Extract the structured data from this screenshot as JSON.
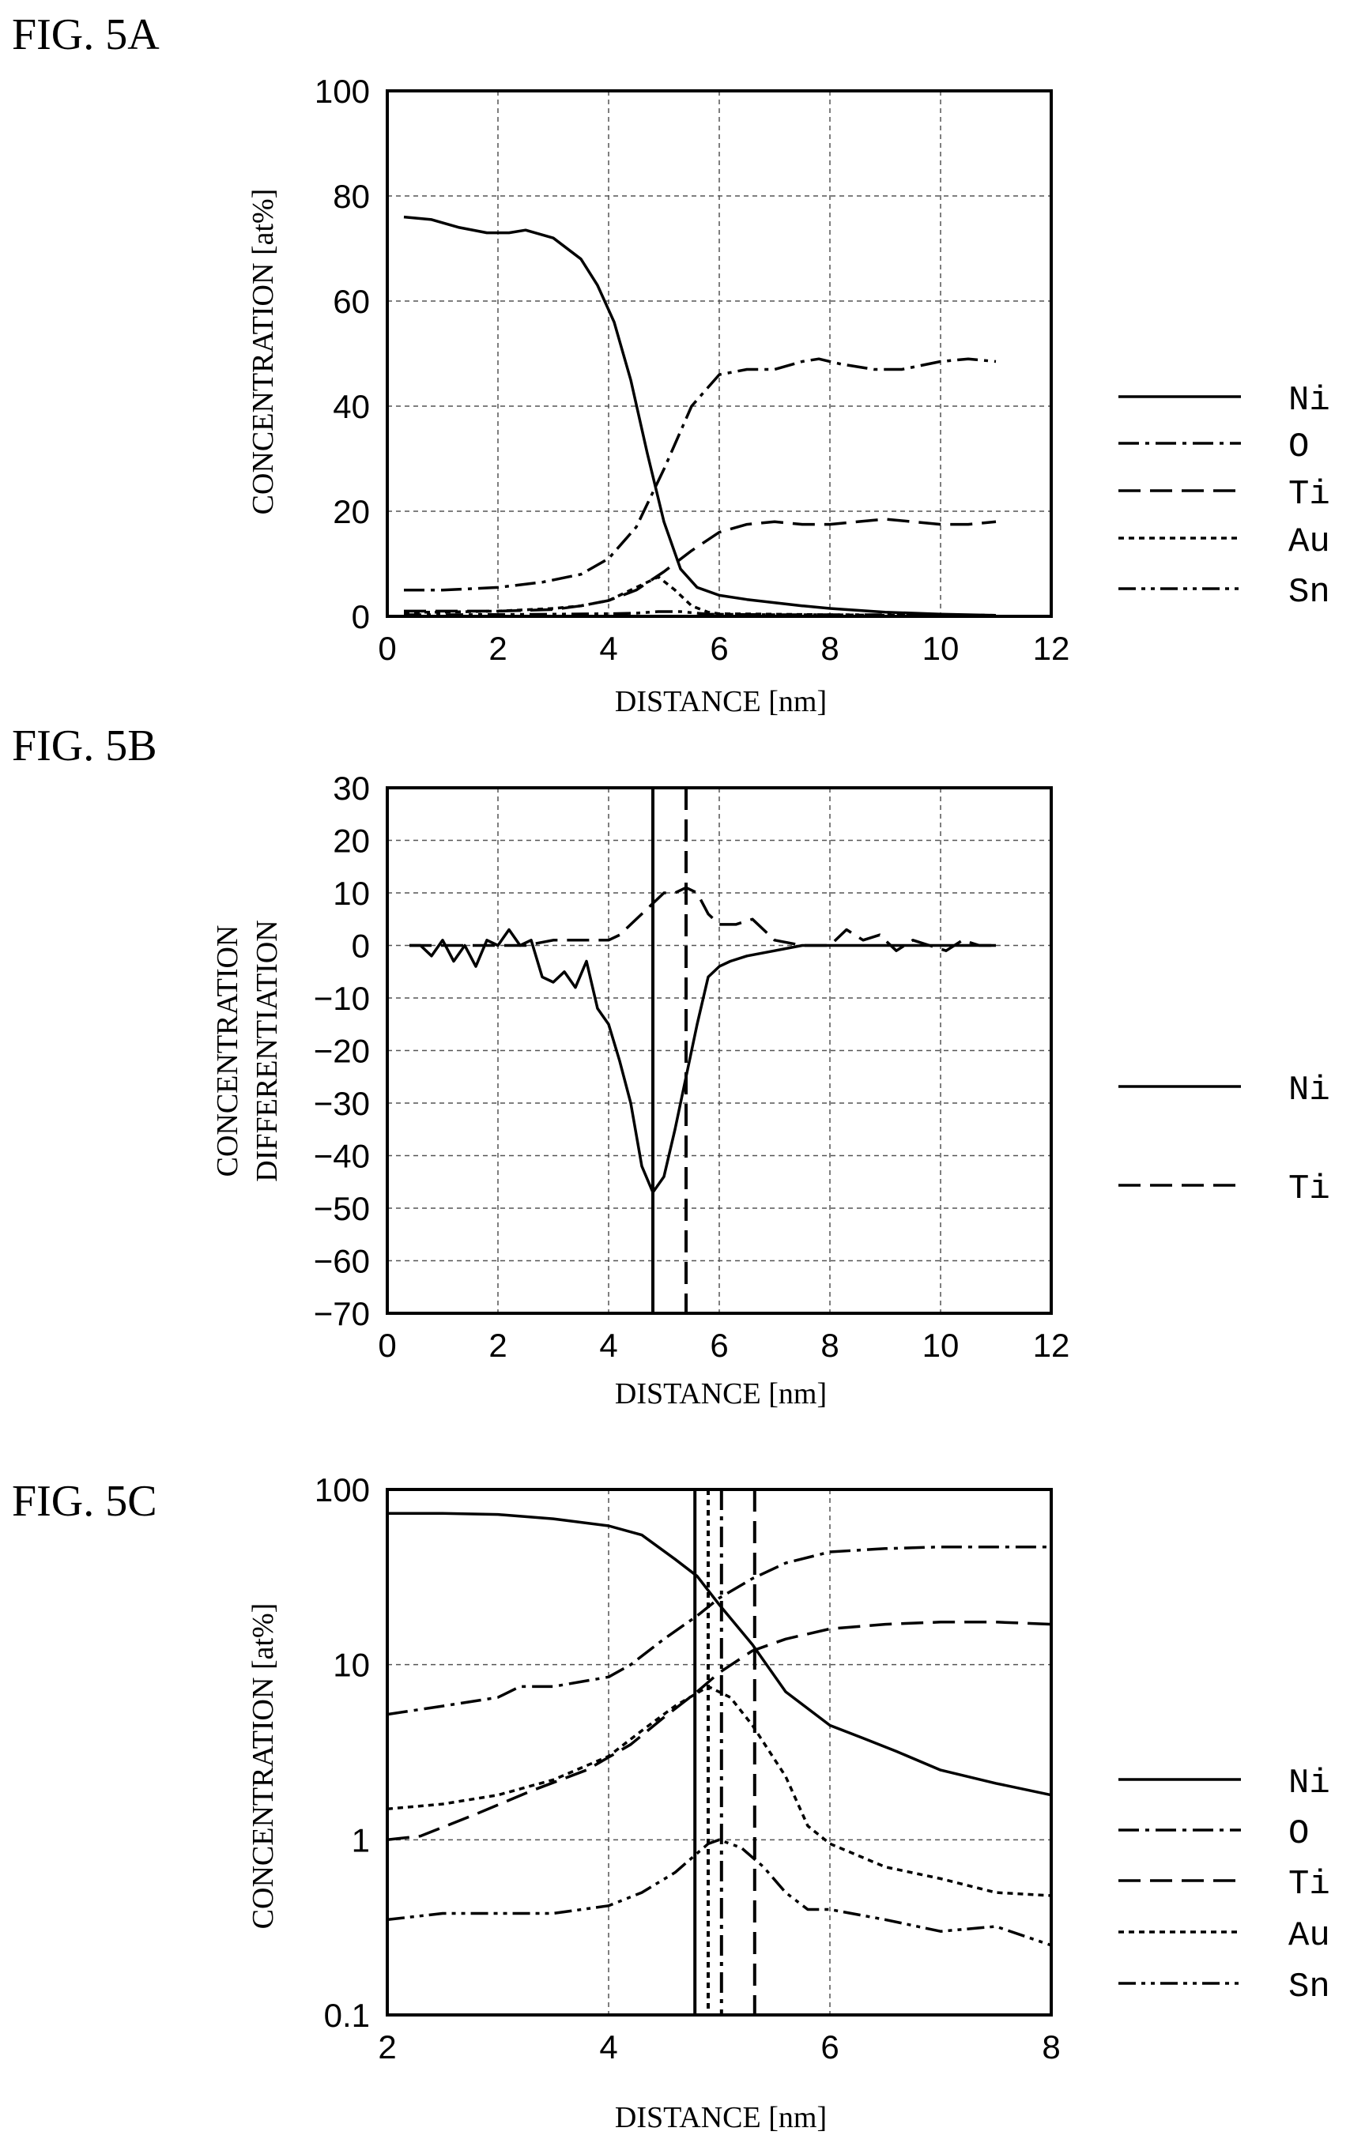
{
  "chart_data": [
    {
      "panel": "FIG. 5A",
      "type": "line",
      "title": "",
      "xlabel": "DISTANCE [nm]",
      "ylabel": "CONCENTRATION [at%]",
      "xlim": [
        0,
        12
      ],
      "ylim": [
        0,
        100
      ],
      "x_scale": "linear",
      "y_scale": "linear",
      "x_ticks": [
        "0",
        "2",
        "4",
        "6",
        "8",
        "10",
        "12"
      ],
      "y_ticks": [
        "0",
        "20",
        "40",
        "60",
        "80",
        "100"
      ],
      "grid": "dashed",
      "legend_position": "right",
      "series": [
        {
          "name": "Ni",
          "style": "solid",
          "x": [
            0.3,
            0.8,
            1.3,
            1.8,
            2.2,
            2.5,
            3.0,
            3.5,
            3.8,
            4.1,
            4.4,
            4.7,
            5.0,
            5.3,
            5.6,
            6.0,
            6.5,
            7.0,
            7.5,
            8.0,
            9.0,
            10.0,
            11.0
          ],
          "y": [
            76,
            75.5,
            74,
            73,
            73,
            73.5,
            72,
            68,
            63,
            56,
            45,
            31,
            18,
            9,
            5.5,
            4,
            3.2,
            2.6,
            2,
            1.5,
            0.8,
            0.4,
            0.2
          ]
        },
        {
          "name": "O",
          "style": "dash-dot",
          "x": [
            0.3,
            1.0,
            2.0,
            2.8,
            3.5,
            4.0,
            4.5,
            5.0,
            5.5,
            6.0,
            6.5,
            7.0,
            7.5,
            7.8,
            8.2,
            8.8,
            9.3,
            10.0,
            10.5,
            11.0
          ],
          "y": [
            5,
            5,
            5.5,
            6.5,
            8,
            11,
            17,
            28,
            40,
            46,
            47,
            47,
            48.5,
            49,
            48,
            47,
            47,
            48.5,
            49,
            48.5
          ]
        },
        {
          "name": "Ti",
          "style": "dashed",
          "x": [
            0.3,
            1.0,
            2.0,
            3.0,
            3.5,
            4.0,
            4.5,
            5.0,
            5.5,
            6.0,
            6.5,
            7.0,
            7.5,
            8.0,
            8.5,
            9.0,
            9.5,
            10.0,
            10.5,
            11.0
          ],
          "y": [
            1,
            1,
            1,
            1.3,
            2,
            3,
            5,
            8.5,
            12.5,
            16,
            17.5,
            18,
            17.5,
            17.5,
            18,
            18.5,
            18,
            17.5,
            17.5,
            18
          ]
        },
        {
          "name": "Au",
          "style": "dotted",
          "x": [
            0.3,
            1.0,
            2.0,
            3.0,
            3.5,
            4.0,
            4.5,
            4.9,
            5.2,
            5.5,
            5.8,
            6.0,
            7.0,
            8.0,
            9.0,
            10.0,
            11.0
          ],
          "y": [
            0.8,
            0.8,
            1,
            1.5,
            2,
            3,
            5.5,
            7.5,
            5,
            2,
            0.8,
            0.5,
            0.4,
            0.3,
            0.2,
            0.2,
            0.2
          ]
        },
        {
          "name": "Sn",
          "style": "dash-dot-dot",
          "x": [
            0.3,
            1.0,
            2.0,
            3.0,
            4.0,
            4.5,
            4.9,
            5.3,
            5.8,
            6.5,
            7.0,
            8.0,
            9.0,
            10.0,
            11.0
          ],
          "y": [
            0.3,
            0.3,
            0.35,
            0.4,
            0.5,
            0.6,
            0.9,
            0.9,
            0.4,
            0.35,
            0.3,
            0.3,
            0.3,
            0.3,
            0.2
          ]
        }
      ]
    },
    {
      "panel": "FIG. 5B",
      "type": "line",
      "title": "",
      "xlabel": "DISTANCE [nm]",
      "ylabel": [
        "CONCENTRATION",
        "DIFFERENTIATION"
      ],
      "xlim": [
        0,
        12
      ],
      "ylim": [
        -70,
        30
      ],
      "x_scale": "linear",
      "y_scale": "linear",
      "x_ticks": [
        "0",
        "2",
        "4",
        "6",
        "8",
        "10",
        "12"
      ],
      "y_ticks": [
        "30",
        "20",
        "10",
        "0",
        "-10",
        "-20",
        "-30",
        "-40",
        "-50",
        "-60",
        "-70"
      ],
      "grid": "dashed",
      "legend_position": "right",
      "vlines": [
        {
          "x": 4.8,
          "style": "solid"
        },
        {
          "x": 5.4,
          "style": "dashed"
        }
      ],
      "series": [
        {
          "name": "Ni",
          "style": "solid",
          "x": [
            0.4,
            0.6,
            0.8,
            1.0,
            1.2,
            1.4,
            1.6,
            1.8,
            2.0,
            2.2,
            2.4,
            2.6,
            2.8,
            3.0,
            3.2,
            3.4,
            3.6,
            3.8,
            4.0,
            4.2,
            4.4,
            4.6,
            4.8,
            5.0,
            5.2,
            5.4,
            5.6,
            5.8,
            6.0,
            6.2,
            6.5,
            7.0,
            7.5,
            8.0,
            8.5,
            9.0,
            9.5,
            10.0,
            10.5,
            11.0
          ],
          "y": [
            0,
            0,
            -2,
            1,
            -3,
            0,
            -4,
            1,
            0,
            3,
            0,
            1,
            -6,
            -7,
            -5,
            -8,
            -3,
            -12,
            -15,
            -22,
            -30,
            -42,
            -47,
            -44,
            -35,
            -25,
            -15,
            -6,
            -4,
            -3,
            -2,
            -1,
            0,
            0,
            0,
            0,
            0,
            0,
            0,
            0
          ]
        },
        {
          "name": "Ti",
          "style": "dashed",
          "x": [
            0.4,
            1.0,
            1.5,
            2.0,
            2.5,
            3.0,
            3.5,
            4.0,
            4.2,
            4.4,
            4.6,
            4.8,
            5.0,
            5.2,
            5.4,
            5.6,
            5.8,
            6.0,
            6.3,
            6.6,
            6.8,
            7.0,
            7.5,
            8.0,
            8.3,
            8.6,
            8.9,
            9.2,
            9.5,
            9.8,
            10.1,
            10.4,
            10.7,
            11.0
          ],
          "y": [
            0,
            0,
            0,
            0,
            0,
            1,
            1,
            1,
            2,
            4,
            6,
            8,
            10,
            10,
            11,
            10,
            6,
            4,
            4,
            5,
            3,
            1,
            0,
            0,
            3,
            1,
            2,
            -1,
            1,
            0,
            -1,
            1,
            0,
            0
          ]
        }
      ]
    },
    {
      "panel": "FIG. 5C",
      "type": "line",
      "title": "",
      "xlabel": "DISTANCE [nm]",
      "ylabel": "CONCENTRATION [at%]",
      "xlim": [
        2,
        8
      ],
      "ylim": [
        0.1,
        100
      ],
      "x_scale": "linear",
      "y_scale": "log",
      "x_ticks": [
        "2",
        "4",
        "6",
        "8"
      ],
      "y_ticks": [
        "0.1",
        "1",
        "10",
        "100"
      ],
      "grid": "dashed",
      "legend_position": "right",
      "vlines": [
        {
          "x": 4.78,
          "style": "solid"
        },
        {
          "x": 4.9,
          "style": "dotted"
        },
        {
          "x": 5.02,
          "style": "dash-dot"
        },
        {
          "x": 5.32,
          "style": "dashed"
        }
      ],
      "series": [
        {
          "name": "Ni",
          "style": "solid",
          "x": [
            2.0,
            2.5,
            3.0,
            3.5,
            4.0,
            4.3,
            4.6,
            4.8,
            5.0,
            5.3,
            5.6,
            6.0,
            6.3,
            6.6,
            7.0,
            7.5,
            8.0
          ],
          "y": [
            73,
            73,
            72,
            68,
            62,
            55,
            40,
            32,
            22,
            13,
            7,
            4.5,
            3.8,
            3.2,
            2.5,
            2.1,
            1.8
          ]
        },
        {
          "name": "O",
          "style": "dash-dot",
          "x": [
            2.0,
            2.5,
            3.0,
            3.2,
            3.5,
            4.0,
            4.2,
            4.5,
            4.8,
            5.0,
            5.3,
            5.6,
            6.0,
            6.5,
            7.0,
            7.5,
            8.0
          ],
          "y": [
            5.2,
            5.8,
            6.5,
            7.5,
            7.5,
            8.5,
            10,
            14,
            19,
            24,
            31,
            38,
            44,
            46,
            47,
            47,
            47
          ]
        },
        {
          "name": "Ti",
          "style": "dashed",
          "x": [
            2.0,
            2.3,
            2.8,
            3.3,
            3.8,
            4.2,
            4.5,
            4.8,
            5.0,
            5.3,
            5.6,
            6.0,
            6.5,
            7.0,
            7.5,
            8.0
          ],
          "y": [
            1,
            1.05,
            1.4,
            1.9,
            2.5,
            3.5,
            5,
            7,
            9,
            12,
            14,
            16,
            17,
            17.5,
            17.5,
            17
          ]
        },
        {
          "name": "Au",
          "style": "dotted",
          "x": [
            2.0,
            2.5,
            3.0,
            3.5,
            4.0,
            4.3,
            4.6,
            4.9,
            5.1,
            5.3,
            5.6,
            5.8,
            6.0,
            6.5,
            7.0,
            7.5,
            8.0
          ],
          "y": [
            1.5,
            1.6,
            1.8,
            2.2,
            3,
            4.2,
            5.8,
            7.5,
            6.5,
            4.5,
            2.3,
            1.2,
            0.95,
            0.7,
            0.6,
            0.5,
            0.48
          ]
        },
        {
          "name": "Sn",
          "style": "dash-dot-dot",
          "x": [
            2.0,
            2.5,
            3.0,
            3.5,
            4.0,
            4.3,
            4.6,
            4.9,
            5.0,
            5.2,
            5.4,
            5.6,
            5.8,
            6.0,
            6.5,
            7.0,
            7.5,
            8.0
          ],
          "y": [
            0.35,
            0.38,
            0.38,
            0.38,
            0.42,
            0.5,
            0.65,
            0.95,
            1.0,
            0.9,
            0.7,
            0.5,
            0.4,
            0.4,
            0.35,
            0.3,
            0.32,
            0.25
          ]
        }
      ]
    }
  ]
}
